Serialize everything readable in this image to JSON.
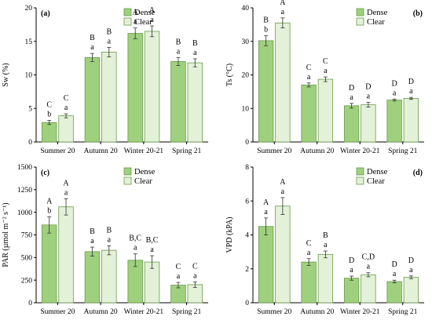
{
  "colors": {
    "dense": "#9fd07e",
    "clear": "#e4f1d9",
    "bar_stroke": "#6a9a4a",
    "axis": "#000000"
  },
  "legend": {
    "dense": "Dense",
    "clear": "Clear"
  },
  "chart_data": [
    {
      "type": "bar",
      "panel_label": "(a)",
      "ylabel": "Sw (%)",
      "ylim": [
        0,
        20
      ],
      "yticks": [
        "0",
        "5",
        "10",
        "15",
        "20"
      ],
      "categories": [
        "Summer 20",
        "Autumn 20",
        "Winter 20-21",
        "Spring 21"
      ],
      "legend_position": "top-right",
      "series": [
        {
          "name": "Dense",
          "values": [
            2.9,
            12.6,
            16.2,
            12.0
          ],
          "errors": [
            0.3,
            0.6,
            0.8,
            0.6
          ],
          "upper_letters": [
            "C",
            "B",
            "A",
            "B"
          ],
          "lower_letters": [
            "b",
            "a",
            "a",
            "a"
          ]
        },
        {
          "name": "Clear",
          "values": [
            3.9,
            13.4,
            16.5,
            11.8
          ],
          "errors": [
            0.3,
            0.7,
            0.8,
            0.6
          ],
          "upper_letters": [
            "C",
            "B",
            "A",
            "B"
          ],
          "lower_letters": [
            "a",
            "a",
            "a",
            "a"
          ]
        }
      ]
    },
    {
      "type": "bar",
      "panel_label": "(b)",
      "ylabel": "Ts (°C)",
      "ylim": [
        0,
        40
      ],
      "yticks": [
        "0",
        "10",
        "20",
        "30",
        "40"
      ],
      "categories": [
        "Summer 20",
        "Autumn 20",
        "Winter 20-21",
        "Spring 21"
      ],
      "legend_position": "top-right",
      "series": [
        {
          "name": "Dense",
          "values": [
            30.2,
            17.0,
            10.8,
            12.5
          ],
          "errors": [
            1.5,
            0.6,
            0.7,
            0.3
          ],
          "upper_letters": [
            "B",
            "C",
            "D",
            "D"
          ],
          "lower_letters": [
            "b",
            "a",
            "a",
            "a"
          ]
        },
        {
          "name": "Clear",
          "values": [
            35.5,
            18.7,
            11.1,
            13.0
          ],
          "errors": [
            1.5,
            0.7,
            0.7,
            0.3
          ],
          "upper_letters": [
            "A",
            "C",
            "D",
            "D"
          ],
          "lower_letters": [
            "a",
            "a",
            "a",
            "a"
          ]
        }
      ]
    },
    {
      "type": "bar",
      "panel_label": "(c)",
      "ylabel": "PAR (µmol m⁻² s⁻¹)",
      "ylim": [
        0,
        1500
      ],
      "yticks": [
        "0",
        "250",
        "500",
        "750",
        "1000",
        "1250",
        "1500"
      ],
      "categories": [
        "Summer 20",
        "Autumn 20",
        "Winter 20-21",
        "Spring 21"
      ],
      "legend_position": "top-right",
      "series": [
        {
          "name": "Dense",
          "values": [
            860,
            565,
            470,
            195
          ],
          "errors": [
            90,
            50,
            70,
            30
          ],
          "upper_letters": [
            "A",
            "B",
            "B,C",
            "C"
          ],
          "lower_letters": [
            "b",
            "a",
            "a",
            "a"
          ]
        },
        {
          "name": "Clear",
          "values": [
            1060,
            580,
            450,
            200
          ],
          "errors": [
            90,
            50,
            70,
            30
          ],
          "upper_letters": [
            "A",
            "B",
            "B,C",
            "C"
          ],
          "lower_letters": [
            "a",
            "a",
            "a",
            "a"
          ]
        }
      ]
    },
    {
      "type": "bar",
      "panel_label": "(d)",
      "ylabel": "VPD (kPA)",
      "ylim": [
        0,
        8
      ],
      "yticks": [
        "0",
        "2",
        "4",
        "6",
        "8"
      ],
      "categories": [
        "Summer 20",
        "Autumn 20",
        "Winter 20-21",
        "Spring 21"
      ],
      "legend_position": "top-right",
      "series": [
        {
          "name": "Dense",
          "values": [
            4.5,
            2.4,
            1.45,
            1.25
          ],
          "errors": [
            0.5,
            0.2,
            0.12,
            0.08
          ],
          "upper_letters": [
            "A",
            "C",
            "D",
            "D"
          ],
          "lower_letters": [
            "a",
            "a",
            "a",
            "a"
          ]
        },
        {
          "name": "Clear",
          "values": [
            5.7,
            2.85,
            1.65,
            1.5
          ],
          "errors": [
            0.5,
            0.2,
            0.12,
            0.08
          ],
          "upper_letters": [
            "A",
            "B",
            "C,D",
            "D"
          ],
          "lower_letters": [
            "a",
            "a",
            "a",
            "a"
          ]
        }
      ]
    }
  ]
}
